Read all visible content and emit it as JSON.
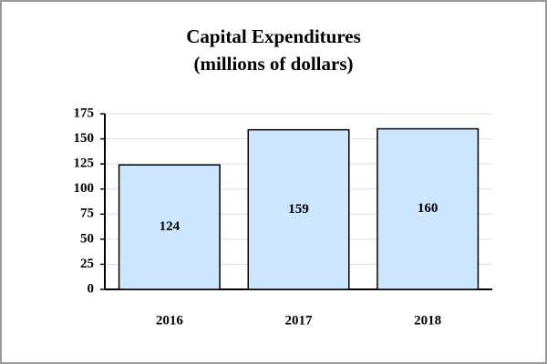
{
  "chart_data": {
    "type": "bar",
    "title": "Capital Expenditures",
    "subtitle": "(millions of dollars)",
    "categories": [
      "2016",
      "2017",
      "2018"
    ],
    "values": [
      124,
      159,
      160
    ],
    "color": "#cce6ff",
    "ylim": [
      0,
      175
    ],
    "yticks": [
      0,
      25,
      50,
      75,
      100,
      125,
      150,
      175
    ],
    "grid": true
  }
}
